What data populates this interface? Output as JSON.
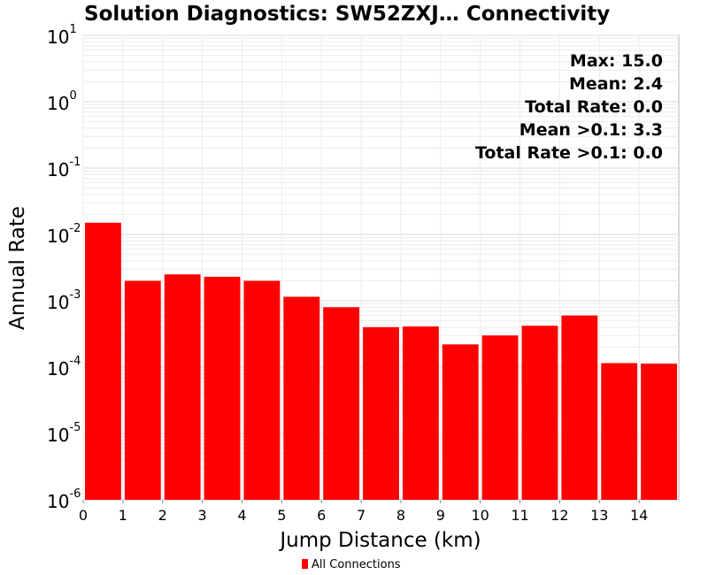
{
  "chart_data": {
    "type": "bar",
    "title": "Solution Diagnostics: SW52ZXJ… Connectivity",
    "xlabel": "Jump Distance (km)",
    "ylabel": "Annual Rate",
    "yscale": "log",
    "ylim": [
      1e-06,
      10
    ],
    "xlim": [
      0,
      15
    ],
    "x_ticks": [
      0,
      1,
      2,
      3,
      4,
      5,
      6,
      7,
      8,
      9,
      10,
      11,
      12,
      13,
      14
    ],
    "y_ticks": [
      {
        "base": "10",
        "exp": "1",
        "value": 10
      },
      {
        "base": "10",
        "exp": "0",
        "value": 1
      },
      {
        "base": "10",
        "exp": "-1",
        "value": 0.1
      },
      {
        "base": "10",
        "exp": "-2",
        "value": 0.01
      },
      {
        "base": "10",
        "exp": "-3",
        "value": 0.001
      },
      {
        "base": "10",
        "exp": "-4",
        "value": 0.0001
      },
      {
        "base": "10",
        "exp": "-5",
        "value": 1e-05
      },
      {
        "base": "10",
        "exp": "-6",
        "value": 1e-06
      }
    ],
    "bins": [
      {
        "x0": 0,
        "x1": 1,
        "value": 0.015
      },
      {
        "x0": 1,
        "x1": 2,
        "value": 0.002
      },
      {
        "x0": 2,
        "x1": 3,
        "value": 0.0025
      },
      {
        "x0": 3,
        "x1": 4,
        "value": 0.0023
      },
      {
        "x0": 4,
        "x1": 5,
        "value": 0.002
      },
      {
        "x0": 5,
        "x1": 6,
        "value": 0.00115
      },
      {
        "x0": 6,
        "x1": 7,
        "value": 0.0008
      },
      {
        "x0": 7,
        "x1": 8,
        "value": 0.0004
      },
      {
        "x0": 8,
        "x1": 9,
        "value": 0.00041
      },
      {
        "x0": 9,
        "x1": 10,
        "value": 0.00022
      },
      {
        "x0": 10,
        "x1": 11,
        "value": 0.0003
      },
      {
        "x0": 11,
        "x1": 12,
        "value": 0.00042
      },
      {
        "x0": 12,
        "x1": 13,
        "value": 0.0006
      },
      {
        "x0": 13,
        "x1": 14,
        "value": 0.000115
      },
      {
        "x0": 14,
        "x1": 15,
        "value": 0.000113
      }
    ],
    "series": [
      {
        "name": "All Connections",
        "color": "#ff0000"
      }
    ],
    "annotations": [
      "Max: 15.0",
      "Mean: 2.4",
      "Total Rate: 0.0",
      "Mean >0.1: 3.3",
      "Total Rate >0.1: 0.0"
    ],
    "legend_position": "bottom-center",
    "grid": true
  }
}
